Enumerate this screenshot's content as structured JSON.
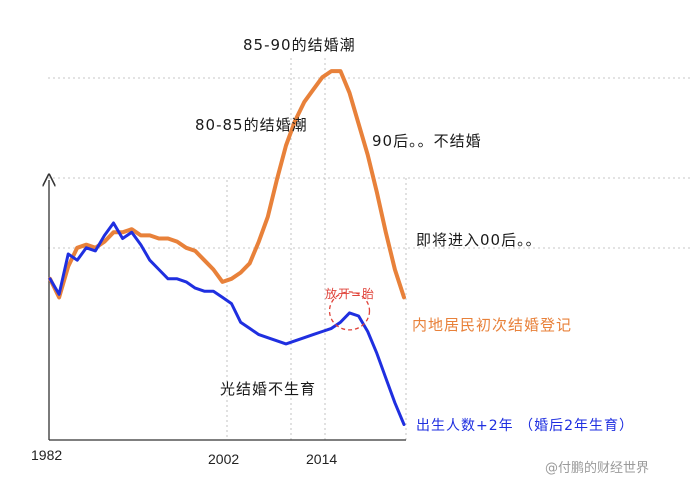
{
  "chart_data": {
    "type": "line",
    "x_ticks": [
      "1982",
      "2002",
      "2014"
    ],
    "series": [
      {
        "name": "内地居民初次结婚登记",
        "color": "#E8813A",
        "x": [
          1982,
          1983,
          1984,
          1985,
          1986,
          1987,
          1988,
          1989,
          1990,
          1991,
          1992,
          1993,
          1994,
          1995,
          1996,
          1997,
          1998,
          1999,
          2000,
          2001,
          2002,
          2003,
          2004,
          2005,
          2006,
          2007,
          2008,
          2009,
          2010,
          2011,
          2012,
          2013,
          2014,
          2015,
          2016,
          2017,
          2018,
          2019,
          2020,
          2021
        ],
        "values": [
          52,
          46,
          56,
          62,
          63,
          62,
          64,
          67,
          67,
          68,
          66,
          66,
          65,
          65,
          64,
          62,
          61,
          58,
          55,
          51,
          52,
          54,
          57,
          64,
          72,
          84,
          95,
          103,
          109,
          113,
          117,
          119,
          119,
          112,
          102,
          92,
          80,
          67,
          55,
          46
        ]
      },
      {
        "name": "出生人数+2年（婚后2年生育）",
        "color": "#1F2FE0",
        "x": [
          1982,
          1983,
          1984,
          1985,
          1986,
          1987,
          1988,
          1989,
          1990,
          1991,
          1992,
          1993,
          1994,
          1995,
          1996,
          1997,
          1998,
          1999,
          2000,
          2001,
          2002,
          2003,
          2004,
          2005,
          2006,
          2007,
          2008,
          2009,
          2010,
          2011,
          2012,
          2013,
          2014,
          2015,
          2016,
          2017,
          2018,
          2019,
          2020,
          2021
        ],
        "values": [
          52,
          47,
          60,
          58,
          62,
          61,
          66,
          70,
          65,
          67,
          63,
          58,
          55,
          52,
          52,
          51,
          49,
          48,
          48,
          46,
          44,
          38,
          36,
          34,
          33,
          32,
          31,
          32,
          33,
          34,
          35,
          36,
          38,
          41,
          40,
          35,
          28,
          20,
          12,
          5
        ]
      }
    ],
    "annotations": [
      "85-90的结婚潮",
      "80-85的结婚潮",
      "90后。。不结婚",
      "即将进入00后。。",
      "放开=胎",
      "内地居民初次结婚登记",
      "光结婚不生育",
      "出生人数+2年 （婚后2年生育）"
    ],
    "grid": true,
    "axes_arrows": true
  },
  "watermark": "@付鹏的财经世界"
}
